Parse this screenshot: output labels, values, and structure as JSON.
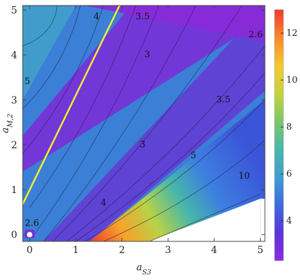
{
  "chart_data": {
    "type": "heatmap",
    "title": "",
    "xlabel": "a",
    "xlabel_sub": "S3",
    "ylabel": "a",
    "ylabel_sub": "M,2",
    "xlim": [
      -0.15,
      5.1
    ],
    "ylim": [
      -0.15,
      5.1
    ],
    "x_ticks": [
      "0",
      "1",
      "2",
      "3",
      "4",
      "5"
    ],
    "y_ticks": [
      "0",
      "1",
      "2",
      "3",
      "4",
      "5"
    ],
    "colorbar": {
      "range": [
        2.3,
        13
      ],
      "ticks": [
        "4",
        "6",
        "8",
        "10",
        "12"
      ],
      "colors": [
        "#8a2be2",
        "#5a35d8",
        "#3d6be0",
        "#3f9fd0",
        "#48b8a8",
        "#7cc66a",
        "#c5d43c",
        "#f4c830",
        "#f78a2a",
        "#f03a2e"
      ]
    },
    "contour_labels": [
      {
        "text": "4",
        "x": 1.45,
        "y": 4.85
      },
      {
        "text": "3.5",
        "x": 2.45,
        "y": 4.85
      },
      {
        "text": "2.6",
        "x": 4.9,
        "y": 4.45
      },
      {
        "text": "3",
        "x": 2.55,
        "y": 4.0
      },
      {
        "text": "5",
        "x": -0.05,
        "y": 3.4
      },
      {
        "text": "3.5",
        "x": 4.2,
        "y": 3.0
      },
      {
        "text": "3",
        "x": 2.45,
        "y": 2.0
      },
      {
        "text": "5",
        "x": 3.55,
        "y": 1.75
      },
      {
        "text": "10",
        "x": 4.65,
        "y": 1.3
      },
      {
        "text": "4",
        "x": 1.6,
        "y": 0.7
      },
      {
        "text": "2.6",
        "x": 0.05,
        "y": 0.25
      }
    ],
    "yellow_line": {
      "x": [
        -0.15,
        1.95
      ],
      "y": [
        0.68,
        5.1
      ]
    },
    "marker_point": {
      "x": 0.0,
      "y": 0.0
    }
  }
}
